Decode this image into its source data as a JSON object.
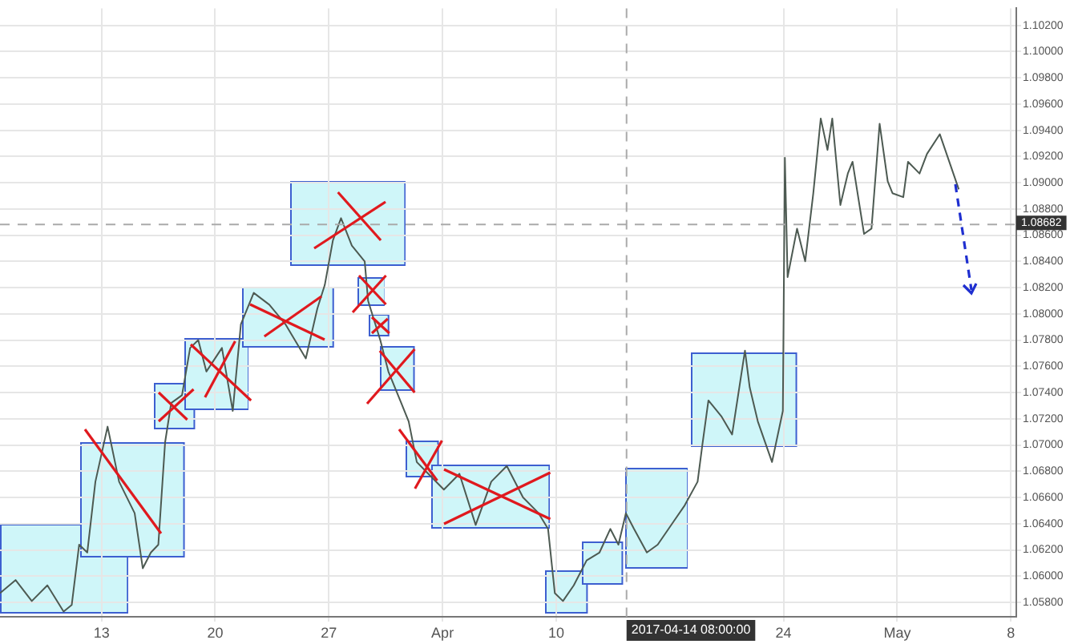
{
  "chart_data": {
    "type": "line",
    "series": [
      {
        "color": "#4d5a52",
        "x": [
          "2017-03-06T18:00",
          "2017-03-07T17:00",
          "2017-03-08T17:00",
          "2017-03-09T16:00",
          "2017-03-10T16:00",
          "2017-03-11T04:00",
          "2017-03-11T15:00",
          "2017-03-12T03:00",
          "2017-03-12T15:00",
          "2017-03-13T09:00",
          "2017-03-14T02:00",
          "2017-03-15T01:00",
          "2017-03-15T13:00",
          "2017-03-16T01:00",
          "2017-03-16T12:00",
          "2017-03-16T22:00",
          "2017-03-17T07:00",
          "2017-03-17T23:00",
          "2017-03-18T11:00",
          "2017-03-18T23:00",
          "2017-03-19T11:00",
          "2017-03-20T10:00",
          "2017-03-21T02:00",
          "2017-03-21T14:00",
          "2017-03-22T09:00",
          "2017-03-23T08:00",
          "2017-03-24T08:00",
          "2017-03-25T14:00",
          "2017-03-26T07:00",
          "2017-03-26T18:00",
          "2017-03-27T06:00",
          "2017-03-27T18:00",
          "2017-03-28T10:00",
          "2017-03-29T05:00",
          "2017-03-29T10:00",
          "2017-03-30T04:00",
          "2017-03-30T16:00",
          "2017-03-31T11:00",
          "2017-03-31T22:00",
          "2017-04-01T10:00",
          "2017-04-02T03:00",
          "2017-04-03T02:00",
          "2017-04-04T01:00",
          "2017-04-05T01:00",
          "2017-04-06T00:00",
          "2017-04-06T23:00",
          "2017-04-07T23:00",
          "2017-04-08T22:00",
          "2017-04-09T12:00",
          "2017-04-09T22:00",
          "2017-04-10T10:00",
          "2017-04-11T02:00",
          "2017-04-11T21:00",
          "2017-04-12T16:00",
          "2017-04-13T08:00",
          "2017-04-13T20:00",
          "2017-04-14T07:00",
          "2017-04-14T19:00",
          "2017-04-15T14:00",
          "2017-04-16T06:00",
          "2017-04-17T06:00",
          "2017-04-17T22:00",
          "2017-04-18T17:00",
          "2017-04-19T00:00",
          "2017-04-19T09:00",
          "2017-04-20T04:00",
          "2017-04-20T20:00",
          "2017-04-21T15:00",
          "2017-04-21T22:00",
          "2017-04-22T10:00",
          "2017-04-23T07:00",
          "2017-04-23T23:00",
          "2017-04-24T02:00",
          "2017-04-24T06:00",
          "2017-04-24T20:00",
          "2017-04-25T08:00",
          "2017-04-25T20:00",
          "2017-04-26T07:00",
          "2017-04-26T17:00",
          "2017-04-27T00:00",
          "2017-04-27T12:00",
          "2017-04-27T23:00",
          "2017-04-28T06:00",
          "2017-04-28T23:00",
          "2017-04-29T10:00",
          "2017-04-29T22:00",
          "2017-04-30T10:00",
          "2017-04-30T17:00",
          "2017-05-01T09:00",
          "2017-05-01T16:00",
          "2017-05-02T09:00",
          "2017-05-02T20:00",
          "2017-05-03T15:00",
          "2017-05-04T07:00",
          "2017-05-04T19:00"
        ],
        "values": [
          1.0587,
          1.0597,
          1.0581,
          1.0593,
          1.0573,
          1.0578,
          1.0624,
          1.0618,
          1.0672,
          1.0714,
          1.0672,
          1.0648,
          1.0606,
          1.0618,
          1.0624,
          1.0702,
          1.0732,
          1.0738,
          1.0774,
          1.078,
          1.0756,
          1.0774,
          1.0726,
          1.0792,
          1.0816,
          1.0807,
          1.0792,
          1.0766,
          1.0804,
          1.0822,
          1.0856,
          1.0873,
          1.0852,
          1.084,
          1.081,
          1.078,
          1.0756,
          1.0732,
          1.0718,
          1.0687,
          1.0678,
          1.0666,
          1.0678,
          1.0639,
          1.0672,
          1.0684,
          1.066,
          1.0648,
          1.0636,
          1.0587,
          1.0581,
          1.0593,
          1.0612,
          1.0618,
          1.0636,
          1.0624,
          1.0648,
          1.0636,
          1.0618,
          1.0624,
          1.0642,
          1.0654,
          1.0672,
          1.07,
          1.0734,
          1.0722,
          1.0708,
          1.0772,
          1.0744,
          1.0718,
          1.0687,
          1.0726,
          1.0919,
          1.0828,
          1.0865,
          1.084,
          1.0892,
          1.0949,
          1.0925,
          1.0949,
          1.0883,
          1.0907,
          1.0916,
          1.0861,
          1.0865,
          1.0945,
          1.0901,
          1.0892,
          1.0889,
          1.0916,
          1.0907,
          1.0922,
          1.0937,
          1.0913,
          1.0895
        ]
      }
    ],
    "xlim": [
      "2017-03-06T18:00",
      "2017-05-08T08:00"
    ],
    "xticks": [
      {
        "value": "2017-03-13",
        "label": "13"
      },
      {
        "value": "2017-03-20",
        "label": "20"
      },
      {
        "value": "2017-03-27",
        "label": "27"
      },
      {
        "value": "2017-04-03",
        "label": "Apr"
      },
      {
        "value": "2017-04-10",
        "label": "10"
      },
      {
        "value": "2017-04-24",
        "label": "24"
      },
      {
        "value": "2017-05-01",
        "label": "May"
      },
      {
        "value": "2017-05-08",
        "label": "8"
      }
    ],
    "ylim": [
      1.0569,
      1.1033
    ],
    "yticks": [
      {
        "value": 1.058,
        "label": "1.05800"
      },
      {
        "value": 1.06,
        "label": "1.06000"
      },
      {
        "value": 1.062,
        "label": "1.06200"
      },
      {
        "value": 1.064,
        "label": "1.06400"
      },
      {
        "value": 1.066,
        "label": "1.06600"
      },
      {
        "value": 1.068,
        "label": "1.06800"
      },
      {
        "value": 1.07,
        "label": "1.07000"
      },
      {
        "value": 1.072,
        "label": "1.07200"
      },
      {
        "value": 1.074,
        "label": "1.07400"
      },
      {
        "value": 1.076,
        "label": "1.07600"
      },
      {
        "value": 1.078,
        "label": "1.07800"
      },
      {
        "value": 1.08,
        "label": "1.08000"
      },
      {
        "value": 1.082,
        "label": "1.08200"
      },
      {
        "value": 1.084,
        "label": "1.08400"
      },
      {
        "value": 1.086,
        "label": "1.08600"
      },
      {
        "value": 1.088,
        "label": "1.08800"
      },
      {
        "value": 1.09,
        "label": "1.09000"
      },
      {
        "value": 1.092,
        "label": "1.09200"
      },
      {
        "value": 1.094,
        "label": "1.09400"
      },
      {
        "value": 1.096,
        "label": "1.09600"
      },
      {
        "value": 1.098,
        "label": "1.09800"
      },
      {
        "value": 1.1,
        "label": "1.10000"
      },
      {
        "value": 1.102,
        "label": "1.10200"
      }
    ],
    "ref_lines": [
      {
        "axis": "y",
        "value": 1.08682,
        "label": "1.08682",
        "color": "#aaaaaa",
        "line_style": "dashed"
      },
      {
        "axis": "x",
        "value": "2017-04-14T08:00",
        "label": "2017-04-14 08:00:00",
        "color": "#aaaaaa",
        "line_style": "dashed"
      }
    ],
    "grid": true,
    "legend": false
  }
}
